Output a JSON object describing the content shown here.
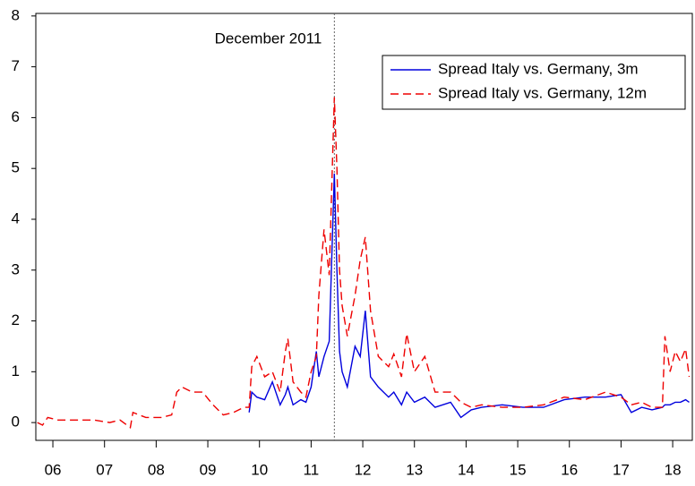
{
  "chart_data": {
    "type": "line",
    "annotation": {
      "text": "December 2011",
      "x": 2011.95
    },
    "x": [
      2006.2,
      2006.3,
      2006.4,
      2006.6,
      2006.8,
      2007.0,
      2007.3,
      2007.6,
      2007.8,
      2008.0,
      2008.05,
      2008.3,
      2008.6,
      2008.8,
      2008.9,
      2009.0,
      2009.2,
      2009.4,
      2009.6,
      2009.8,
      2010.0,
      2010.2,
      2010.3,
      2010.35,
      2010.45,
      2010.6,
      2010.75,
      2010.9,
      2011.0,
      2011.05,
      2011.15,
      2011.3,
      2011.4,
      2011.5,
      2011.6,
      2011.65,
      2011.75,
      2011.85,
      2011.95,
      2012.0,
      2012.05,
      2012.1,
      2012.2,
      2012.35,
      2012.45,
      2012.55,
      2012.65,
      2012.8,
      2013.0,
      2013.1,
      2013.25,
      2013.35,
      2013.5,
      2013.7,
      2013.9,
      2014.2,
      2014.4,
      2014.6,
      2014.8,
      2015.2,
      2015.6,
      2016.0,
      2016.4,
      2016.8,
      2017.2,
      2017.5,
      2017.7,
      2017.9,
      2018.1,
      2018.3,
      2018.35,
      2018.45,
      2018.55,
      2018.65,
      2018.75,
      2018.82
    ],
    "series": [
      {
        "name": "Spread Italy vs. Germany, 3m",
        "color": "#0000dd",
        "line_style": "solid",
        "values": [
          null,
          null,
          null,
          null,
          null,
          null,
          null,
          null,
          null,
          null,
          null,
          null,
          null,
          null,
          null,
          null,
          null,
          null,
          null,
          null,
          null,
          null,
          0.2,
          0.6,
          0.5,
          0.45,
          0.8,
          0.35,
          0.55,
          0.7,
          0.35,
          0.45,
          0.4,
          0.7,
          1.4,
          0.9,
          1.3,
          1.6,
          4.9,
          3.0,
          1.4,
          1.0,
          0.7,
          1.5,
          1.3,
          2.2,
          0.9,
          0.7,
          0.5,
          0.6,
          0.35,
          0.6,
          0.4,
          0.5,
          0.3,
          0.4,
          0.1,
          0.25,
          0.3,
          0.35,
          0.3,
          0.3,
          0.45,
          0.5,
          0.5,
          0.55,
          0.2,
          0.3,
          0.25,
          0.3,
          0.35,
          0.35,
          0.4,
          0.4,
          0.45,
          0.4
        ]
      },
      {
        "name": "Spread Italy vs. Germany, 12m",
        "color": "#ee0000",
        "line_style": "dashed",
        "values": [
          0.0,
          -0.05,
          0.1,
          0.05,
          0.05,
          0.05,
          0.05,
          0.0,
          0.05,
          -0.1,
          0.2,
          0.1,
          0.1,
          0.15,
          0.6,
          0.7,
          0.6,
          0.6,
          0.35,
          0.15,
          0.2,
          0.3,
          0.3,
          1.1,
          1.3,
          0.9,
          1.0,
          0.6,
          1.4,
          1.65,
          0.8,
          0.6,
          0.5,
          1.0,
          1.3,
          2.5,
          3.8,
          2.9,
          6.4,
          5.0,
          3.0,
          2.3,
          1.7,
          2.5,
          3.2,
          3.65,
          2.2,
          1.3,
          1.1,
          1.35,
          0.9,
          1.75,
          1.0,
          1.3,
          0.6,
          0.6,
          0.4,
          0.3,
          0.35,
          0.3,
          0.3,
          0.35,
          0.5,
          0.45,
          0.6,
          0.5,
          0.35,
          0.4,
          0.3,
          0.3,
          1.7,
          1.0,
          1.4,
          1.2,
          1.45,
          0.9
        ]
      }
    ],
    "xlim": [
      2006.17,
      2018.88
    ],
    "xticks": [
      {
        "value": 2006.5,
        "label": "06"
      },
      {
        "value": 2007.5,
        "label": "07"
      },
      {
        "value": 2008.5,
        "label": "08"
      },
      {
        "value": 2009.5,
        "label": "09"
      },
      {
        "value": 2010.5,
        "label": "10"
      },
      {
        "value": 2011.5,
        "label": "11"
      },
      {
        "value": 2012.5,
        "label": "12"
      },
      {
        "value": 2013.5,
        "label": "13"
      },
      {
        "value": 2014.5,
        "label": "14"
      },
      {
        "value": 2015.5,
        "label": "15"
      },
      {
        "value": 2016.5,
        "label": "16"
      },
      {
        "value": 2017.5,
        "label": "17"
      },
      {
        "value": 2018.5,
        "label": "18"
      }
    ],
    "ylim": [
      -0.35,
      8.05
    ],
    "yticks": [
      0,
      1,
      2,
      3,
      4,
      5,
      6,
      7,
      8
    ],
    "grid": false,
    "legend": "top-right"
  }
}
